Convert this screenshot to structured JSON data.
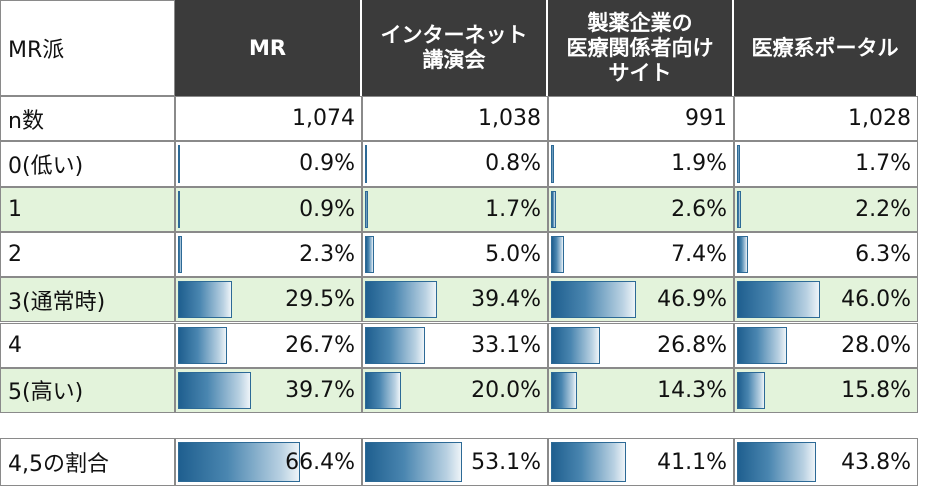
{
  "chart_data": {
    "type": "table",
    "corner_label": "MR派",
    "columns": [
      "MR",
      "インターネット\n講演会",
      "製薬企業の\n医療関係者向け\nサイト",
      "医療系ポータル"
    ],
    "n_label": "n数",
    "n_values": [
      "1,074",
      "1,038",
      "991",
      "1,028"
    ],
    "rows": [
      {
        "label": "0(低い)",
        "values": [
          0.9,
          0.8,
          1.9,
          1.7
        ],
        "display": [
          "0.9%",
          "0.8%",
          "1.9%",
          "1.7%"
        ],
        "shade": "white"
      },
      {
        "label": "1",
        "values": [
          0.9,
          1.7,
          2.6,
          2.2
        ],
        "display": [
          "0.9%",
          "1.7%",
          "2.6%",
          "2.2%"
        ],
        "shade": "green"
      },
      {
        "label": "2",
        "values": [
          2.3,
          5.0,
          7.4,
          6.3
        ],
        "display": [
          "2.3%",
          "5.0%",
          "7.4%",
          "6.3%"
        ],
        "shade": "white"
      },
      {
        "label": "3(通常時)",
        "values": [
          29.5,
          39.4,
          46.9,
          46.0
        ],
        "display": [
          "29.5%",
          "39.4%",
          "46.9%",
          "46.0%"
        ],
        "shade": "green"
      },
      {
        "label": "4",
        "values": [
          26.7,
          33.1,
          26.8,
          28.0
        ],
        "display": [
          "26.7%",
          "33.1%",
          "26.8%",
          "28.0%"
        ],
        "shade": "white"
      },
      {
        "label": "5(高い)",
        "values": [
          39.7,
          20.0,
          14.3,
          15.8
        ],
        "display": [
          "39.7%",
          "20.0%",
          "14.3%",
          "15.8%"
        ],
        "shade": "green"
      }
    ],
    "summary": {
      "label": "4,5の割合",
      "values": [
        66.4,
        53.1,
        41.1,
        43.8
      ],
      "display": [
        "66.4%",
        "53.1%",
        "41.1%",
        "43.8%"
      ],
      "shade": "white"
    },
    "colors": {
      "header_bg": "#3b3b3b",
      "row_green": "#e3f3db",
      "bar": "#1f5f8f"
    }
  }
}
